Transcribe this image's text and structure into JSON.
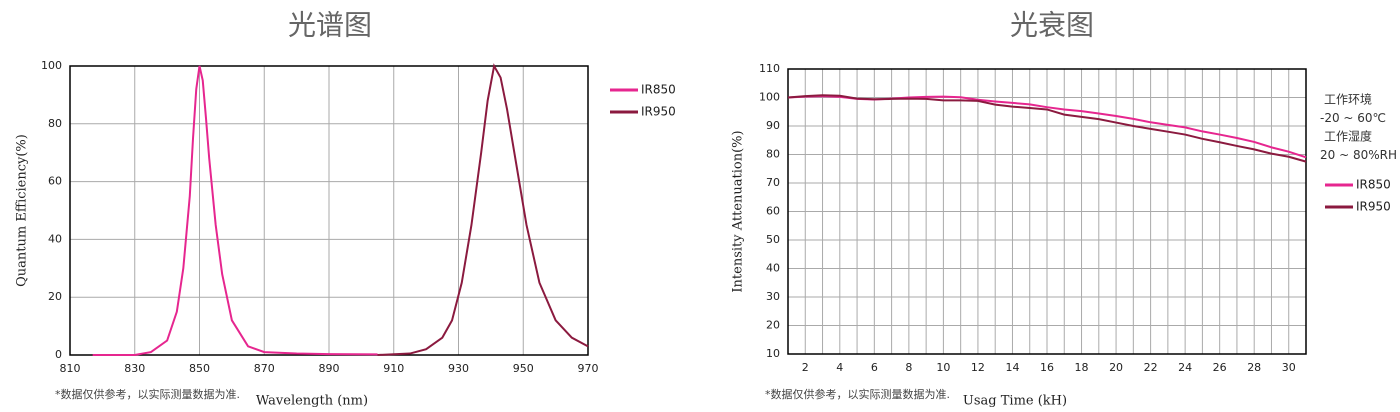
{
  "chart_data": [
    {
      "type": "line",
      "title": "光谱图",
      "x_label": "Wavelength  (nm)",
      "y_label": "Quantum  Efficiency(%)",
      "note": "*数据仅供参考，以实际测量数据为准.",
      "xlim": [
        810,
        970
      ],
      "ylim": [
        0,
        100
      ],
      "xticks": [
        810,
        830,
        850,
        870,
        890,
        910,
        930,
        950,
        970
      ],
      "yticks": [
        0,
        20,
        40,
        60,
        80,
        100
      ],
      "grid": true,
      "legend": "right",
      "series": [
        {
          "name": "IR850",
          "color": "#e6268f",
          "x": [
            817,
            830,
            835,
            840,
            843,
            845,
            847,
            848,
            849,
            850,
            851,
            852,
            853,
            855,
            857,
            860,
            865,
            870,
            880,
            890,
            905
          ],
          "values": [
            0,
            0,
            1,
            5,
            15,
            30,
            55,
            75,
            92,
            100,
            95,
            82,
            68,
            45,
            28,
            12,
            3,
            1,
            0.5,
            0.3,
            0.2
          ]
        },
        {
          "name": "IR950",
          "color": "#8b1a3f",
          "x": [
            905,
            915,
            920,
            925,
            928,
            931,
            934,
            937,
            939,
            941,
            943,
            945,
            948,
            951,
            955,
            960,
            965,
            970
          ],
          "values": [
            0,
            0.5,
            2,
            6,
            12,
            25,
            45,
            70,
            88,
            100,
            96,
            85,
            65,
            45,
            25,
            12,
            6,
            3
          ]
        }
      ]
    },
    {
      "type": "line",
      "title": "光衰图",
      "x_label": "Usag Time (kH)",
      "y_label": "Intensity Attenuation(%)",
      "note": "*数据仅供参考，以实际测量数据为准.",
      "annotations": [
        "工作环境",
        "-20 ~ 60℃",
        "工作湿度",
        "20 ~ 80%RH"
      ],
      "xlim": [
        1,
        31
      ],
      "ylim": [
        10,
        110
      ],
      "xticks": [
        2,
        4,
        6,
        8,
        10,
        12,
        14,
        16,
        18,
        20,
        22,
        24,
        26,
        28,
        30
      ],
      "x_minor_ticks": [
        3,
        5,
        7,
        9,
        11,
        13,
        15,
        17,
        19,
        21,
        23,
        25,
        27,
        29
      ],
      "yticks": [
        10,
        20,
        30,
        40,
        50,
        60,
        70,
        80,
        90,
        100,
        110
      ],
      "grid": true,
      "legend": "right",
      "x": [
        1,
        2,
        3,
        4,
        5,
        6,
        7,
        8,
        9,
        10,
        11,
        12,
        13,
        14,
        15,
        16,
        17,
        18,
        19,
        20,
        21,
        22,
        23,
        24,
        25,
        26,
        27,
        28,
        29,
        30,
        31
      ],
      "series": [
        {
          "name": "IR850",
          "color": "#e6268f",
          "values": [
            100,
            100.3,
            100.5,
            100.2,
            99.5,
            99.3,
            99.6,
            100,
            100.2,
            100.3,
            100.1,
            99.2,
            98.6,
            98.1,
            97.6,
            96.6,
            95.8,
            95.2,
            94.4,
            93.5,
            92.5,
            91.3,
            90.4,
            89.5,
            88.1,
            87,
            85.8,
            84.4,
            82.5,
            81,
            79
          ]
        },
        {
          "name": "IR950",
          "color": "#8b1a3f",
          "values": [
            100,
            100.5,
            100.8,
            100.6,
            99.6,
            99.4,
            99.5,
            99.6,
            99.5,
            99,
            99,
            98.8,
            97.5,
            96.8,
            96.3,
            95.8,
            94,
            93.2,
            92.4,
            91.2,
            90,
            89,
            88,
            87,
            85.5,
            84.3,
            83,
            81.8,
            80.3,
            79.2,
            77.5
          ]
        }
      ]
    }
  ]
}
